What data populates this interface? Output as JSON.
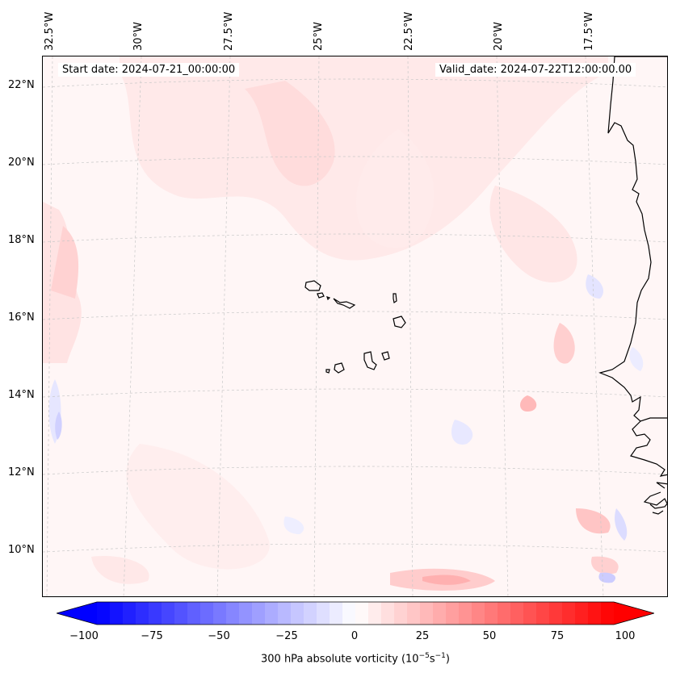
{
  "map": {
    "start_date": "Start date: 2024-07-21_00:00:00",
    "valid_date": "Valid_date: 2024-07-22T12:00:00.00",
    "lon_labels": [
      "32.5°W",
      "30°W",
      "27.5°W",
      "25°W",
      "22.5°W",
      "20°W",
      "17.5°W"
    ],
    "lat_labels": [
      "22°N",
      "20°N",
      "18°N",
      "16°N",
      "14°N",
      "12°N",
      "10°N"
    ],
    "extent": {
      "lon_min": -33.0,
      "lon_max": -15.5,
      "lat_min": 8.8,
      "lat_max": 22.8
    },
    "gridline_lons": [
      -32.5,
      -30,
      -27.5,
      -25,
      -22.5,
      -20,
      -17.5
    ],
    "gridline_lats": [
      22,
      20,
      18,
      16,
      14,
      12,
      10
    ]
  },
  "colorbar": {
    "label_prefix": "300 hPa absolute vorticity (10",
    "label_exp1": "−5",
    "label_mid": "s",
    "label_exp2": "−1",
    "label_suffix": ")",
    "ticks": [
      "−100",
      "−75",
      "−50",
      "−25",
      "0",
      "25",
      "50",
      "75",
      "100"
    ],
    "range": [
      -100,
      100
    ],
    "min_color": "#0000ff",
    "max_color": "#ff0000"
  },
  "colors": {
    "background_field": "#fff8f8",
    "gridline": "#c8c8c8",
    "coast": "#000000"
  }
}
